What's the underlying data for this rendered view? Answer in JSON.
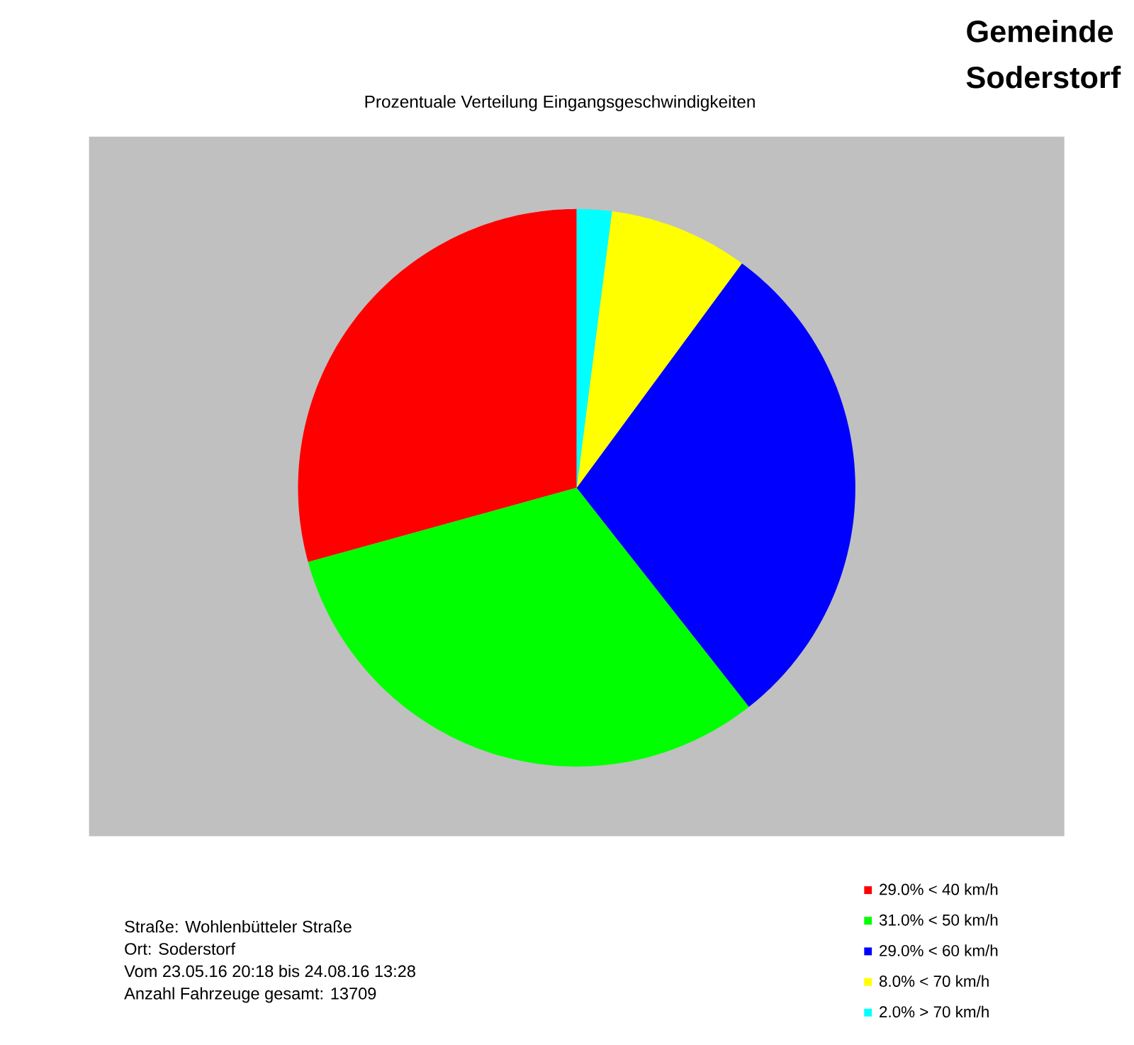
{
  "chart_data": {
    "type": "pie",
    "title": "Prozentuale Verteilung Eingangsgeschwindigkeiten",
    "categories": [
      "29.0%  < 40 km/h",
      "31.0%  < 50 km/h",
      "29.0%  < 60 km/h",
      "8.0%  < 70 km/h",
      "2.0%  > 70 km/h"
    ],
    "values": [
      29.0,
      31.0,
      29.0,
      8.0,
      2.0
    ],
    "colors": [
      "#ff0000",
      "#00ff00",
      "#0000ff",
      "#ffff00",
      "#00ffff"
    ],
    "legend": "bottom right",
    "annotations": [
      "Gemeinde Soderstorf",
      "Straße: Wohlenbütteler Straße",
      "Ort: Soderstorf",
      "Vom 23.05.16 20:18 bis 24.08.16 13:28",
      "Anzahl Fahrzeuge gesamt: 13709"
    ]
  }
}
